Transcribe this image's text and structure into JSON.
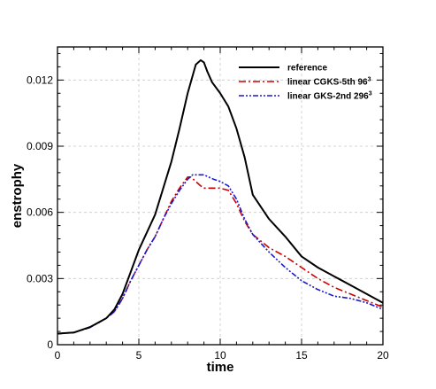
{
  "chart_data": {
    "type": "line",
    "xlabel": "time",
    "ylabel": "enstrophy",
    "xlim": [
      0,
      20
    ],
    "ylim": [
      0,
      0.0135
    ],
    "xticks": [
      0,
      5,
      10,
      15,
      20
    ],
    "xtick_labels": [
      "0",
      "5",
      "10",
      "15",
      "20"
    ],
    "yticks": [
      0,
      0.003,
      0.006,
      0.009,
      0.012
    ],
    "ytick_labels": [
      "0",
      "0.003",
      "0.006",
      "0.009",
      "0.012"
    ],
    "grid": true,
    "legend_position": "top-right",
    "series": [
      {
        "name": "reference",
        "name_base": "reference",
        "name_sup": "",
        "color": "#000000",
        "dash": "solid",
        "x": [
          0,
          1,
          2,
          3,
          3.5,
          4,
          4.5,
          5,
          5.5,
          6,
          6.5,
          7,
          7.5,
          8,
          8.5,
          8.8,
          9,
          9.2,
          9.5,
          10,
          10.5,
          11,
          11.5,
          12,
          13,
          14,
          15,
          16,
          17,
          18,
          19,
          20
        ],
        "y": [
          0.0005,
          0.00055,
          0.0008,
          0.0012,
          0.0016,
          0.0023,
          0.0033,
          0.0043,
          0.0051,
          0.0059,
          0.0071,
          0.0083,
          0.0098,
          0.0114,
          0.0127,
          0.0129,
          0.0128,
          0.0124,
          0.0119,
          0.0114,
          0.0108,
          0.0098,
          0.0085,
          0.0068,
          0.0057,
          0.0049,
          0.004,
          0.0035,
          0.0031,
          0.0027,
          0.0023,
          0.0019
        ]
      },
      {
        "name": "linear CGKS-5th 96^3",
        "name_base": "linear CGKS-5th 96",
        "name_sup": "3",
        "color": "#cc0000",
        "dash": "8 3 2 3",
        "x": [
          0,
          1,
          2,
          3,
          3.5,
          4,
          4.5,
          5,
          5.5,
          6,
          6.5,
          7,
          7.5,
          7.8,
          8,
          8.2,
          8.5,
          8.8,
          9,
          9.3,
          9.6,
          10,
          10.5,
          11,
          11.5,
          12,
          13,
          14,
          15,
          16,
          17,
          18,
          19,
          20
        ],
        "y": [
          0.0005,
          0.00055,
          0.00078,
          0.0012,
          0.0015,
          0.0021,
          0.0029,
          0.0036,
          0.0043,
          0.0049,
          0.0057,
          0.0065,
          0.0071,
          0.0074,
          0.0076,
          0.0076,
          0.0074,
          0.0072,
          0.0071,
          0.0071,
          0.0071,
          0.0071,
          0.007,
          0.0064,
          0.0056,
          0.005,
          0.0044,
          0.004,
          0.0035,
          0.003,
          0.0026,
          0.0023,
          0.002,
          0.0017
        ]
      },
      {
        "name": "linear GKS-2nd 296^3",
        "name_base": "linear GKS-2nd 296",
        "name_sup": "3",
        "color": "#1a1acc",
        "dash": "6 2 2 2 2 2",
        "x": [
          0,
          1,
          2,
          3,
          3.5,
          4,
          4.5,
          5,
          5.5,
          6,
          6.5,
          7,
          7.5,
          8,
          8.3,
          8.7,
          9,
          9.3,
          9.6,
          10,
          10.5,
          11,
          11.5,
          12,
          13,
          14,
          15,
          16,
          17,
          18,
          19,
          20
        ],
        "y": [
          0.0005,
          0.00055,
          0.00078,
          0.0012,
          0.0015,
          0.0021,
          0.0029,
          0.0036,
          0.0043,
          0.0049,
          0.0057,
          0.0064,
          0.007,
          0.0075,
          0.0077,
          0.0077,
          0.0077,
          0.0076,
          0.0075,
          0.0074,
          0.0072,
          0.0066,
          0.0057,
          0.005,
          0.0042,
          0.0035,
          0.0029,
          0.0025,
          0.0022,
          0.0021,
          0.0019,
          0.0016
        ]
      }
    ]
  }
}
